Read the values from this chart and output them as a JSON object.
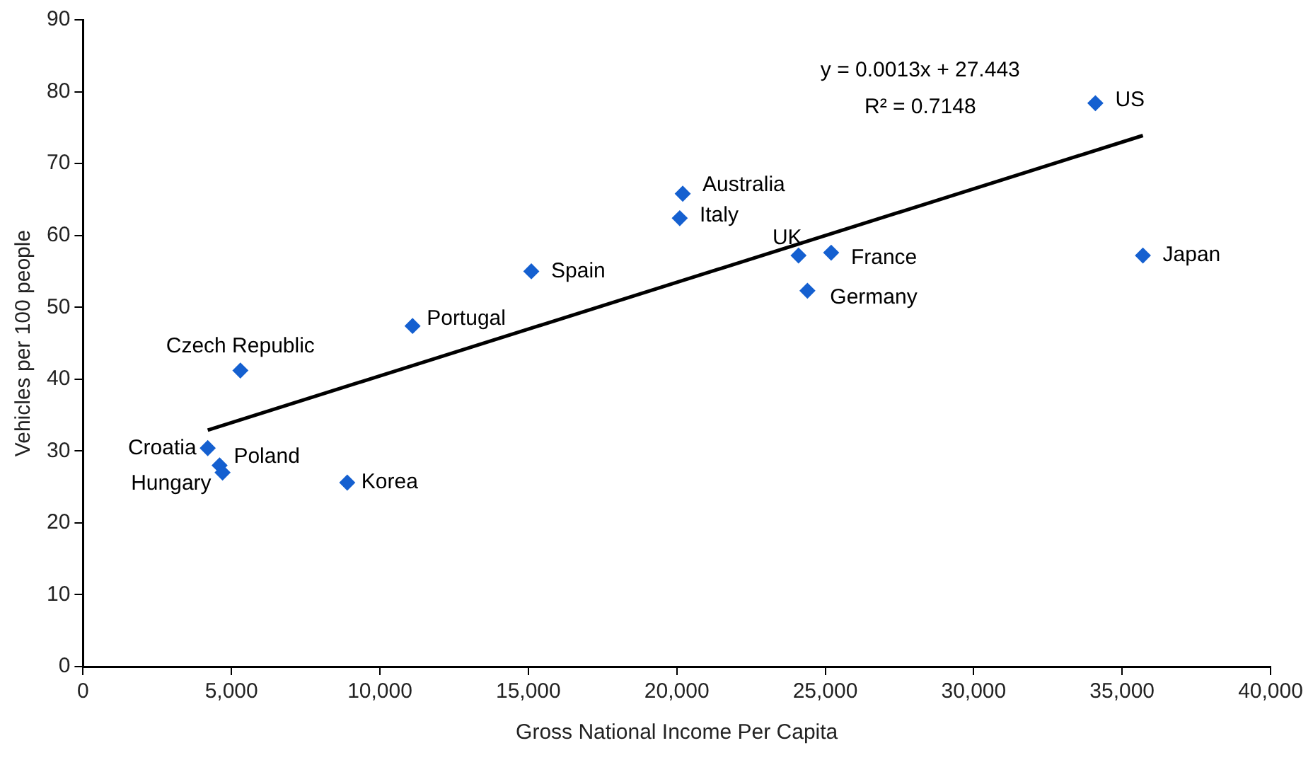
{
  "chart_data": {
    "type": "scatter",
    "xlabel": "Gross National Income Per Capita",
    "ylabel": "Vehicles per 100 people",
    "xlim": [
      0,
      40000
    ],
    "xticks": [
      0,
      {
        "value": 5000,
        "label": "5,000"
      },
      {
        "value": 10000,
        "label": "10,000"
      },
      {
        "value": 15000,
        "label": "15,000"
      },
      {
        "value": 20000,
        "label": "20,000"
      },
      {
        "value": 25000,
        "label": "25,000"
      },
      {
        "value": 30000,
        "label": "30,000"
      },
      {
        "value": 35000,
        "label": "35,000"
      },
      {
        "value": 40000,
        "label": "40,000"
      }
    ],
    "ylim": [
      0,
      90
    ],
    "yticks": [
      0,
      10,
      20,
      30,
      40,
      50,
      60,
      70,
      80,
      90
    ],
    "grid": false,
    "legend": false,
    "series": [
      {
        "marker": "diamond",
        "color": "#1560d0",
        "x": [
          4200,
          4600,
          4700,
          5300,
          8900,
          11100,
          15100,
          20200,
          20100,
          24100,
          25200,
          24400,
          34100,
          35700
        ],
        "values": [
          30.4,
          28,
          27,
          41.2,
          25.6,
          47.4,
          55,
          65.8,
          62.4,
          57.2,
          57.6,
          52.3,
          78.4,
          57.2
        ]
      },
      {
        "type": "line",
        "marker": "none",
        "color": "#000000",
        "x": [
          4200,
          35700
        ],
        "values": [
          32.9,
          73.9
        ]
      }
    ],
    "annotations": [
      {
        "text": "Croatia",
        "x": 4200,
        "y": 30.4
      },
      {
        "text": "Poland",
        "x": 4600,
        "y": 28
      },
      {
        "text": "Hungary",
        "x": 4700,
        "y": 27
      },
      {
        "text": "Czech Republic",
        "x": 5300,
        "y": 41.2
      },
      {
        "text": "Korea",
        "x": 8900,
        "y": 25.6
      },
      {
        "text": "Portugal",
        "x": 11100,
        "y": 47.4
      },
      {
        "text": "Spain",
        "x": 15100,
        "y": 55
      },
      {
        "text": "Australia",
        "x": 20200,
        "y": 65.8
      },
      {
        "text": "Italy",
        "x": 20100,
        "y": 62.4
      },
      {
        "text": "UK",
        "x": 24100,
        "y": 57.2
      },
      {
        "text": "France",
        "x": 25200,
        "y": 57.6
      },
      {
        "text": "Germany",
        "x": 24400,
        "y": 52.3
      },
      {
        "text": "US",
        "x": 34100,
        "y": 78.4
      },
      {
        "text": "Japan",
        "x": 35700,
        "y": 57.2
      },
      "y = 0.0013x + 27.443",
      "R² = 0.7148"
    ]
  }
}
